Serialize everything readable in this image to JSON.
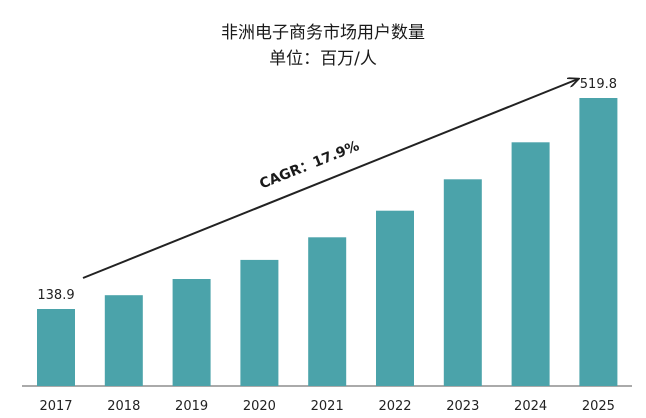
{
  "chart_data": {
    "type": "bar",
    "title": "非洲电子商务市场用户数量",
    "subtitle": "单位：百万/人",
    "categories": [
      "2017",
      "2018",
      "2019",
      "2020",
      "2021",
      "2022",
      "2023",
      "2024",
      "2025"
    ],
    "values": [
      138.9,
      163.8,
      193.1,
      227.6,
      268.4,
      316.4,
      373.0,
      439.8,
      519.8
    ],
    "data_labels": {
      "2017": "138.9",
      "2025": "519.8"
    },
    "annotation": "CAGR：17.9%",
    "ylim": [
      0,
      550
    ],
    "grid": false,
    "colors": {
      "bar": "#4ba3aa",
      "arrow": "#222222"
    }
  }
}
